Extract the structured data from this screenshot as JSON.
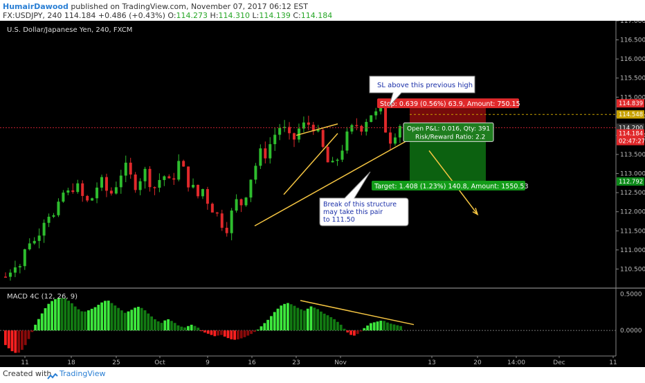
{
  "header": {
    "author": "HumairDawood",
    "published": "published on TradingView.com, November 07, 2017 06:12 EST",
    "symbol": "FX:USDJPY, 240",
    "last": "114.184",
    "change": "+0.486 (+0.43%)",
    "o_label": "O:",
    "o_value": "114.273",
    "h_label": "H:",
    "h_value": "114.310",
    "l_label": "L:",
    "l_value": "114.139",
    "c_label": "C:",
    "c_value": "114.184"
  },
  "footer": {
    "created": "Created with",
    "brand": "TradingView"
  },
  "colors": {
    "up": "#2ebd2e",
    "down": "#e0292b",
    "trend": "#f5c542",
    "stop_zone": "#8b0d0d",
    "target_zone": "#0d6b12",
    "macd_bright_up": "#3de83d",
    "macd_dark_up": "#127a12",
    "macd_bright_down": "#ff2020",
    "macd_dark_down": "#8a0a0a"
  },
  "chart_data": [
    {
      "type": "candlestick",
      "title": "U.S. Dollar/Japanese Yen, 240, FXCM",
      "ylim": [
        110.0,
        117.0
      ],
      "y_ticks": [
        "117.000",
        "116.500",
        "116.000",
        "115.500",
        "115.000",
        "114.500",
        "114.000",
        "113.500",
        "113.000",
        "112.500",
        "112.000",
        "111.500",
        "111.000",
        "110.500"
      ],
      "x_ticks": [
        "11",
        "18",
        "25",
        "Oct",
        "9",
        "16",
        "23",
        "Nov",
        "13",
        "20",
        "14:00",
        "Dec",
        "11"
      ],
      "price_tags": [
        {
          "label": "114.839",
          "value": 114.839,
          "color": "#e0292b"
        },
        {
          "label": "114.548",
          "value": 114.548,
          "color": "#c8a200"
        },
        {
          "label": "114.200",
          "value": 114.2,
          "color": "#333333"
        },
        {
          "label": "114.184",
          "value": 114.05,
          "color": "#e0292b"
        },
        {
          "label": "02:47:27",
          "value": 113.85,
          "color": "#e0292b"
        },
        {
          "label": "112.792",
          "value": 112.792,
          "color": "#0d8a1a"
        }
      ],
      "path_closes": [
        110.3,
        110.5,
        110.7,
        110.6,
        111.0,
        111.3,
        111.2,
        111.6,
        111.9,
        112.0,
        111.8,
        112.2,
        112.6,
        112.4,
        112.8,
        112.5,
        112.3,
        112.2,
        112.5,
        112.8,
        112.7,
        112.4,
        112.6,
        112.9,
        113.2,
        113.0,
        112.7,
        112.8,
        113.1,
        112.9,
        112.6,
        112.8,
        113.0,
        112.7,
        112.9,
        113.3,
        113.1,
        112.8,
        112.6,
        112.4,
        112.6,
        112.3,
        112.1,
        111.9,
        111.7,
        111.6,
        112.0,
        112.3,
        112.2,
        112.6,
        113.0,
        113.3,
        113.6,
        113.5,
        113.9,
        114.1,
        114.3,
        114.0,
        113.8,
        114.0,
        114.3,
        114.2,
        114.4,
        114.1,
        113.8,
        113.4,
        113.1,
        113.3,
        113.6,
        113.9,
        114.1,
        114.3,
        114.2,
        114.4,
        114.6,
        114.5,
        114.8,
        114.2,
        113.9,
        114.1,
        114.3,
        114.18
      ],
      "annotations": [
        {
          "text": "SL above this previous high"
        },
        {
          "text": "Break of this structure may take this pair to 111.50"
        },
        {
          "text": "Stop: 0.639 (0.56%) 63.9, Amount: 750.15"
        },
        {
          "text": "Open P&L: 0.016, Qty: 391"
        },
        {
          "text": "Risk/Reward Ratio: 2.2"
        },
        {
          "text": "Target: 1.408 (1.23%) 140.8, Amount: 1550.53"
        }
      ],
      "position": {
        "entry": 114.2,
        "stop": 114.839,
        "target": 112.792
      }
    },
    {
      "type": "histogram",
      "title": "MACD 4C (12, 26, 9)",
      "y_ticks": [
        "0.5000",
        "0.0000"
      ],
      "ylim": [
        -0.35,
        0.58
      ],
      "hist_shape": [
        -0.2,
        -0.28,
        -0.32,
        -0.25,
        -0.1,
        0.08,
        0.22,
        0.35,
        0.42,
        0.45,
        0.44,
        0.38,
        0.3,
        0.25,
        0.28,
        0.32,
        0.38,
        0.42,
        0.36,
        0.3,
        0.24,
        0.28,
        0.33,
        0.3,
        0.22,
        0.15,
        0.1,
        0.16,
        0.12,
        0.06,
        0.04,
        0.08,
        0.05,
        -0.02,
        -0.05,
        -0.08,
        -0.06,
        -0.1,
        -0.13,
        -0.12,
        -0.09,
        -0.05,
        0.0,
        0.08,
        0.16,
        0.26,
        0.34,
        0.38,
        0.35,
        0.3,
        0.27,
        0.33,
        0.3,
        0.24,
        0.2,
        0.15,
        0.08,
        -0.02,
        -0.08,
        -0.04,
        0.04,
        0.1,
        0.12,
        0.14,
        0.1,
        0.08,
        0.06
      ]
    }
  ]
}
